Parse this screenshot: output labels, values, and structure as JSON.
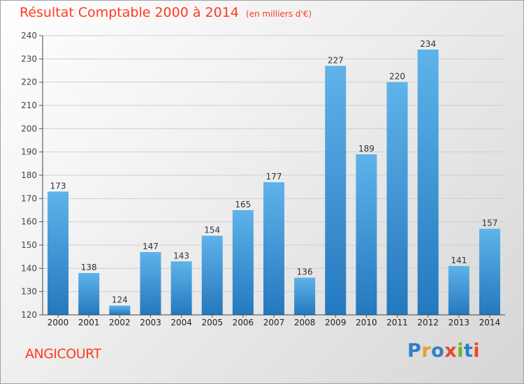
{
  "header": {
    "title": "Résultat Comptable 2000 à 2014",
    "subtitle": "(en milliers d'€)"
  },
  "footer": {
    "commune": "ANGICOURT",
    "logo_letters": [
      "P",
      "r",
      "o",
      "x",
      "i",
      "t",
      "i"
    ],
    "logo_colors": [
      "#2f7fc8",
      "#e8a020",
      "#2f7fc8",
      "#e84a2a",
      "#6ab42a",
      "#2f7fc8",
      "#e84a2a"
    ]
  },
  "colors": {
    "bar": "#2f8fd8",
    "bar_light": "#5fb3ea",
    "grid": "#cfcfcf",
    "title": "#ff3b1f"
  },
  "chart_data": {
    "type": "bar",
    "title": "Résultat Comptable 2000 à 2014",
    "subtitle": "(en milliers d'€)",
    "xlabel": "",
    "ylabel": "",
    "categories": [
      "2000",
      "2001",
      "2002",
      "2003",
      "2004",
      "2005",
      "2006",
      "2007",
      "2008",
      "2009",
      "2010",
      "2011",
      "2012",
      "2013",
      "2014"
    ],
    "values": [
      173,
      138,
      124,
      147,
      143,
      154,
      165,
      177,
      136,
      227,
      189,
      220,
      234,
      141,
      157
    ],
    "ylim": [
      120,
      240
    ],
    "yticks": [
      120,
      130,
      140,
      150,
      160,
      170,
      180,
      190,
      200,
      210,
      220,
      230,
      240
    ],
    "grid": true,
    "data_labels": true
  }
}
